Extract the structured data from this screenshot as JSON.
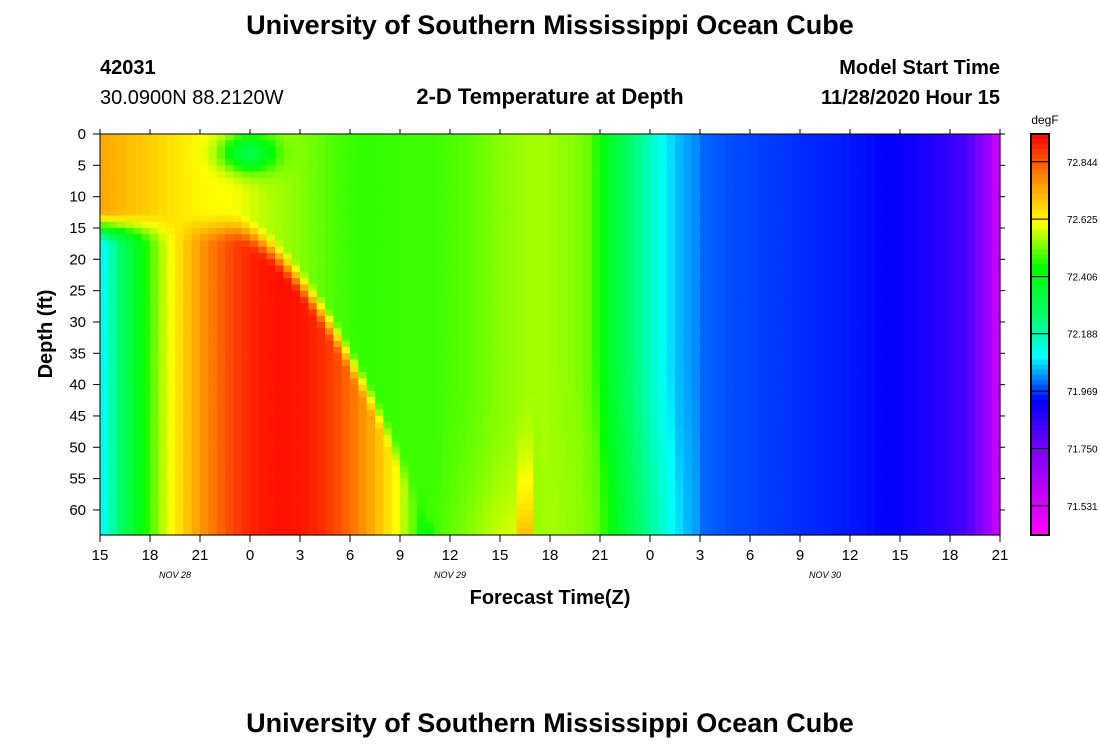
{
  "header": {
    "title": "University of Southern Mississippi Ocean Cube",
    "station_id": "42031",
    "station_location": "30.0900N 88.2120W",
    "plot_title": "2-D Temperature at Depth",
    "model_label": "Model Start Time",
    "model_time": "11/28/2020 Hour 15"
  },
  "footer": {
    "title": "University of Southern Mississippi Ocean Cube"
  },
  "chart_data": {
    "type": "heatmap",
    "title": "2-D Temperature at Depth",
    "xlabel": "Forecast Time(Z)",
    "ylabel": "Depth (ft)",
    "x_hours_range": [
      0,
      54
    ],
    "x_tick_labels": [
      "15",
      "18",
      "21",
      "0",
      "3",
      "6",
      "9",
      "12",
      "15",
      "18",
      "21",
      "0",
      "3",
      "6",
      "9",
      "12",
      "15",
      "18",
      "21"
    ],
    "date_labels": [
      {
        "label": "NOV 28",
        "hour": 4.5
      },
      {
        "label": "NOV 29",
        "hour": 21
      },
      {
        "label": "NOV 30",
        "hour": 43.5
      }
    ],
    "ylim": [
      0,
      64
    ],
    "y_ticks": [
      0,
      5,
      10,
      15,
      20,
      25,
      30,
      35,
      40,
      45,
      50,
      55,
      60
    ],
    "colorbar": {
      "unit": "degF",
      "range": [
        71.42,
        72.95
      ],
      "tick_values": [
        72.844,
        72.625,
        72.406,
        72.188,
        71.969,
        71.75,
        71.531
      ],
      "tick_labels": [
        "72.844",
        "72.625",
        "72.406",
        "72.188",
        "71.969",
        "71.750",
        "71.531"
      ]
    },
    "colors": {
      "scale": [
        "#ff00ff",
        "#c000ff",
        "#7000ff",
        "#0000ff",
        "#00ffff",
        "#00ff60",
        "#00ff00",
        "#ffff00",
        "#ff8c00",
        "#ff0000"
      ]
    }
  }
}
